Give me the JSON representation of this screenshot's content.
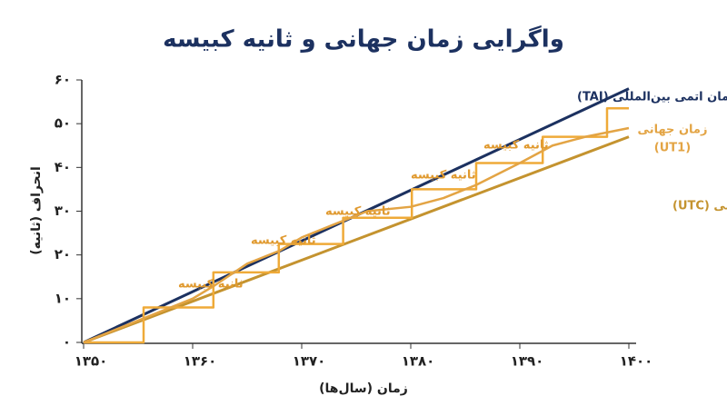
{
  "chart_data": {
    "type": "line",
    "title": "واگرایی زمان جهانی و ثانیه کبیسه",
    "x_label": "زمان (سال‌ها)",
    "y_label": "انحراف (ثانیه)",
    "xlim": [
      1350,
      1400
    ],
    "ylim": [
      0,
      60
    ],
    "xticks": [
      {
        "value": 1350,
        "label": "۱۳۵۰"
      },
      {
        "value": 1360,
        "label": "۱۳۶۰"
      },
      {
        "value": 1370,
        "label": "۱۳۷۰"
      },
      {
        "value": 1380,
        "label": "۱۳۸۰"
      },
      {
        "value": 1390,
        "label": "۱۳۹۰"
      },
      {
        "value": 1400,
        "label": "۱۴۰۰"
      }
    ],
    "yticks": [
      {
        "value": 0,
        "label": "۰"
      },
      {
        "value": 10,
        "label": "۱۰"
      },
      {
        "value": 20,
        "label": "۲۰"
      },
      {
        "value": 30,
        "label": "۳۰"
      },
      {
        "value": 40,
        "label": "۴۰"
      },
      {
        "value": 50,
        "label": "۵۰"
      },
      {
        "value": 60,
        "label": "۶۰"
      }
    ],
    "series": [
      {
        "name": "زمان اتمی بین‌المللی (TAI)",
        "color": "#1c3160",
        "x": [
          1350,
          1400
        ],
        "values": [
          0,
          58
        ]
      },
      {
        "name": "زمان هماهنگ جهانی (UTC)",
        "color": "#c4932f",
        "x": [
          1350,
          1400
        ],
        "values": [
          0,
          47
        ]
      },
      {
        "color": "#efaa38",
        "x": [
          1350,
          1355.5,
          1355.5,
          1361.9,
          1361.9,
          1367.9,
          1367.9,
          1373.8,
          1373.8,
          1380.1,
          1380.1,
          1386,
          1386,
          1392.1,
          1392.1,
          1398,
          1398,
          1400
        ],
        "values": [
          0,
          0,
          8,
          8,
          16,
          16,
          22.5,
          22.5,
          28.5,
          28.5,
          35,
          35,
          41,
          41,
          47,
          47,
          53.5,
          53.5
        ]
      },
      {
        "name": [
          "زمان جهانی",
          "(UT1)"
        ],
        "color": "#e3a444",
        "x": [
          1350,
          1355,
          1360,
          1362,
          1365,
          1368,
          1370,
          1373,
          1376,
          1380,
          1383,
          1386,
          1390,
          1393,
          1396,
          1400
        ],
        "values": [
          0,
          5,
          10,
          13,
          18,
          21,
          24,
          27,
          30,
          31,
          33,
          36,
          41,
          45,
          47,
          49
        ]
      }
    ],
    "annotations": [
      "ثانیه کبیسه",
      "ثانیه کبیسه",
      "ثانیه کبیسه",
      "ثانیه کبیسه",
      "ثانیه کبیسه"
    ]
  }
}
